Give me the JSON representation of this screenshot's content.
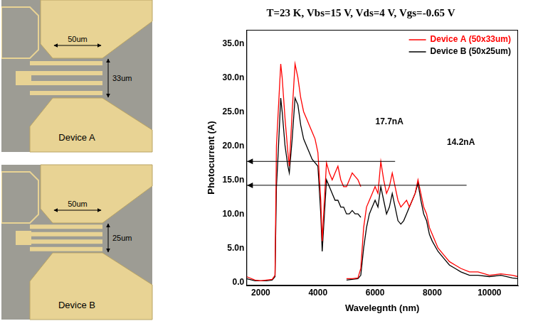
{
  "devices": [
    {
      "name": "Device A",
      "width_label": "50um",
      "height_label": "33um"
    },
    {
      "name": "Device B",
      "width_label": "50um",
      "height_label": "25um"
    }
  ],
  "chart_data": {
    "type": "line",
    "title": "T=23 K, Vbs=15 V, Vds=4 V, Vgs=-0.65 V",
    "x_label": "Wavelegnth (nm)",
    "y_label": "Photocurrent (A)",
    "xlim": [
      1500,
      11000
    ],
    "xticks": [
      2000,
      4000,
      6000,
      8000,
      10000
    ],
    "ylim": [
      -5e-10,
      3.7e-08
    ],
    "yticks": [
      {
        "value": 0,
        "label": "0.0"
      },
      {
        "value": 5e-09,
        "label": "5.0n"
      },
      {
        "value": 1e-08,
        "label": "10.0n"
      },
      {
        "value": 1.5e-08,
        "label": "15.0n"
      },
      {
        "value": 2e-08,
        "label": "20.0n"
      },
      {
        "value": 2.5e-08,
        "label": "25.0n"
      },
      {
        "value": 3e-08,
        "label": "30.0n"
      },
      {
        "value": 3.5e-08,
        "label": "35.0n"
      }
    ],
    "grid": false,
    "legend": "upper right",
    "series": [
      {
        "name": "Device A (50x33um)",
        "color": "#ff0000",
        "x": [
          1500,
          1800,
          2000,
          2200,
          2400,
          2500,
          2550,
          2600,
          2700,
          2750,
          2850,
          2950,
          3000,
          3100,
          3200,
          3300,
          3400,
          3500,
          3600,
          3700,
          3800,
          3900,
          4000,
          4100,
          4150,
          4200,
          4300,
          4400,
          4500,
          4600,
          4700,
          4800,
          4900,
          5000,
          5100,
          5200,
          5300,
          5400,
          5500,
          5500,
          5000,
          5200,
          5400,
          5500,
          5600,
          5700,
          5800,
          5900,
          6000,
          6100,
          6200,
          6300,
          6400,
          6500,
          6600,
          6700,
          6800,
          6900,
          7000,
          7100,
          7200,
          7300,
          7400,
          7500,
          7600,
          7700,
          7800,
          7900,
          8000,
          8200,
          8400,
          8600,
          8800,
          9000,
          9300,
          9600,
          10000,
          10400,
          10800,
          11000
        ],
        "values": [
          8e-10,
          3e-10,
          2e-10,
          3e-10,
          4e-10,
          1e-09,
          2e-08,
          2.4e-08,
          3.2e-08,
          3e-08,
          2.4e-08,
          1.9e-08,
          1.7e-08,
          2.5e-08,
          3.2e-08,
          3e-08,
          2.7e-08,
          2.5e-08,
          2.4e-08,
          2.3e-08,
          2.2e-08,
          2.1e-08,
          1.9e-08,
          1.2e-08,
          6e-09,
          1e-08,
          1.75e-08,
          1.6e-08,
          1.5e-08,
          1.6e-08,
          1.7e-08,
          1.5e-08,
          1.4e-08,
          1.4e-08,
          1.5e-08,
          1.6e-08,
          1.55e-08,
          1.5e-08,
          1.4e-08,
          null,
          5e-10,
          5e-10,
          6e-10,
          2e-09,
          8e-09,
          1.1e-08,
          1.2e-08,
          1.3e-08,
          1.4e-08,
          1.3e-08,
          1.77e-08,
          1.5e-08,
          1.3e-08,
          1.4e-08,
          1.6e-08,
          1.4e-08,
          1.2e-08,
          1.1e-08,
          1.15e-08,
          1.2e-08,
          1.1e-08,
          1.2e-08,
          1.3e-08,
          1.5e-08,
          1.3e-08,
          1.1e-08,
          1e-08,
          8e-09,
          7e-09,
          5e-09,
          4e-09,
          3e-09,
          2.5e-09,
          2e-09,
          1.5e-09,
          1.5e-09,
          1e-09,
          1.2e-09,
          1e-09,
          8e-10
        ]
      },
      {
        "name": "Device B (50x25um)",
        "color": "#000000",
        "x": [
          1500,
          1800,
          2000,
          2200,
          2400,
          2500,
          2550,
          2600,
          2700,
          2750,
          2850,
          2950,
          3000,
          3100,
          3200,
          3300,
          3400,
          3500,
          3600,
          3700,
          3800,
          3900,
          4000,
          4100,
          4150,
          4200,
          4300,
          4400,
          4500,
          4600,
          4700,
          4800,
          4900,
          5000,
          5100,
          5200,
          5300,
          5400,
          5500,
          5500,
          5000,
          5200,
          5400,
          5500,
          5600,
          5700,
          5800,
          5900,
          6000,
          6100,
          6200,
          6300,
          6400,
          6500,
          6600,
          6700,
          6800,
          6900,
          7000,
          7100,
          7200,
          7300,
          7400,
          7500,
          7600,
          7700,
          7800,
          7900,
          8000,
          8200,
          8400,
          8600,
          8800,
          9000,
          9300,
          9600,
          10000,
          10400,
          10800,
          11000
        ],
        "values": [
          5e-10,
          2e-10,
          2e-10,
          2e-10,
          3e-10,
          8e-10,
          1.4e-08,
          1.8e-08,
          2.7e-08,
          2.5e-08,
          2e-08,
          1.7e-08,
          1.6e-08,
          2.1e-08,
          2.7e-08,
          2.6e-08,
          2.3e-08,
          2.1e-08,
          2e-08,
          1.9e-08,
          1.8e-08,
          1.75e-08,
          1.7e-08,
          1e-08,
          4.5e-09,
          8e-09,
          1.5e-08,
          1.4e-08,
          1.3e-08,
          1.2e-08,
          1.2e-08,
          1.1e-08,
          1.1e-08,
          1e-08,
          1e-08,
          1.05e-08,
          1e-08,
          1e-08,
          9.5e-09,
          null,
          3e-10,
          4e-10,
          5e-10,
          1e-09,
          5e-09,
          8e-09,
          1e-08,
          1.1e-08,
          1.2e-08,
          1.1e-08,
          1.4e-08,
          1.2e-08,
          1e-08,
          1.1e-08,
          1.3e-08,
          1.1e-08,
          9e-09,
          8.5e-09,
          9e-09,
          1e-08,
          1.1e-08,
          1.2e-08,
          1.3e-08,
          1.45e-08,
          1.2e-08,
          1e-08,
          9e-09,
          7e-09,
          6e-09,
          4.5e-09,
          3.5e-09,
          2.5e-09,
          2e-09,
          1.5e-09,
          1e-09,
          1e-09,
          8e-10,
          1e-09,
          6e-10,
          5e-10
        ]
      }
    ],
    "annotations": [
      {
        "text": "17.7nA",
        "x": 6500,
        "y": 2.35e-08
      },
      {
        "text": "14.2nA",
        "x": 9000,
        "y": 2.05e-08
      }
    ],
    "lines": [
      {
        "y": 1.77e-08,
        "x": [
          1500,
          6700
        ]
      },
      {
        "y": 1.42e-08,
        "x": [
          1500,
          9200
        ]
      }
    ]
  }
}
